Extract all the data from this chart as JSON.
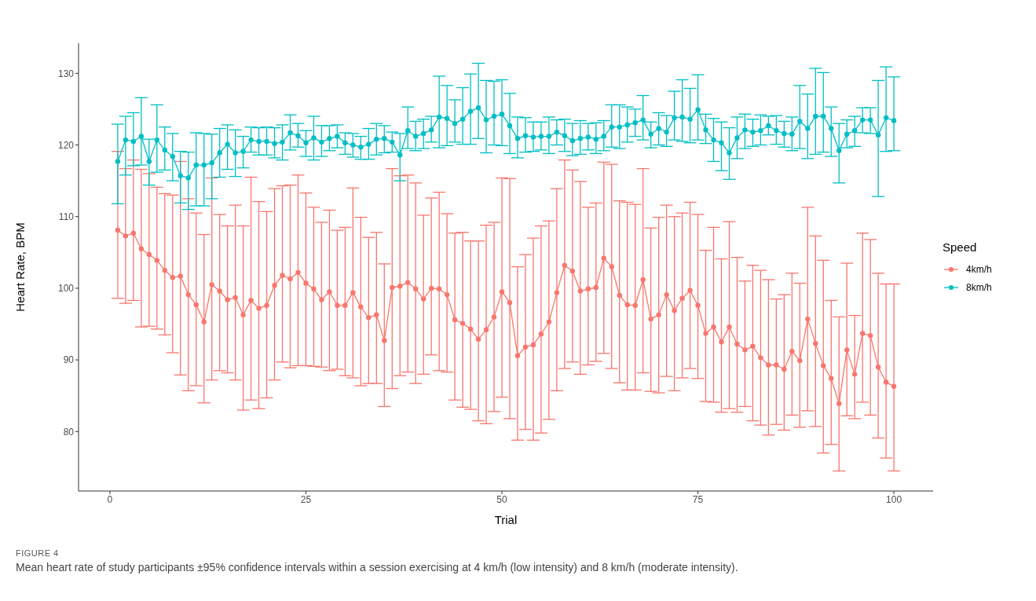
{
  "chart_data": {
    "type": "line",
    "xlabel": "Trial",
    "ylabel": "Heart Rate, BPM",
    "legend_title": "Speed",
    "legend": "right",
    "marker": "circle",
    "line_style": "solid",
    "xlim": [
      -4,
      105
    ],
    "xticks": [
      0,
      25,
      50,
      75,
      100
    ],
    "ylim": [
      71.7,
      134.2
    ],
    "yticks": [
      80,
      90,
      100,
      110,
      120,
      130
    ],
    "x": [
      1,
      2,
      3,
      4,
      5,
      6,
      7,
      8,
      9,
      10,
      11,
      12,
      13,
      14,
      15,
      16,
      17,
      18,
      19,
      20,
      21,
      22,
      23,
      24,
      25,
      26,
      27,
      28,
      29,
      30,
      31,
      32,
      33,
      34,
      35,
      36,
      37,
      38,
      39,
      40,
      41,
      42,
      43,
      44,
      45,
      46,
      47,
      48,
      49,
      50,
      51,
      52,
      53,
      54,
      55,
      56,
      57,
      58,
      59,
      60,
      61,
      62,
      63,
      64,
      65,
      66,
      67,
      68,
      69,
      70,
      71,
      72,
      73,
      74,
      75,
      76,
      77,
      78,
      79,
      80,
      81,
      82,
      83,
      84,
      85,
      86,
      87,
      88,
      89,
      90,
      91,
      92,
      93,
      94,
      95,
      96,
      97,
      98,
      99,
      100
    ],
    "series": [
      {
        "name": "4km/h",
        "color": "#f8766d",
        "values": [
          108.1,
          107.3,
          107.7,
          105.5,
          104.7,
          103.9,
          102.5,
          101.5,
          101.7,
          99.1,
          97.7,
          95.3,
          100.5,
          99.6,
          98.4,
          98.7,
          96.3,
          98.3,
          97.2,
          97.6,
          100.4,
          101.8,
          101.3,
          102.2,
          100.7,
          99.9,
          98.4,
          99.5,
          97.6,
          97.6,
          99.4,
          97.4,
          95.9,
          96.3,
          92.7,
          100.1,
          100.3,
          100.8,
          99.9,
          98.5,
          100.0,
          99.9,
          99.1,
          95.6,
          95.1,
          94.3,
          92.9,
          94.2,
          96.0,
          99.5,
          98.0,
          90.6,
          91.8,
          92.1,
          93.6,
          95.3,
          99.4,
          103.2,
          102.4,
          99.6,
          99.9,
          100.1,
          104.2,
          103.0,
          99.0,
          97.7,
          97.6,
          101.2,
          95.7,
          96.3,
          99.1,
          96.9,
          98.6,
          99.7,
          97.6,
          93.7,
          94.6,
          92.5,
          94.6,
          92.2,
          91.4,
          91.9,
          90.3,
          89.3,
          89.3,
          88.7,
          91.2,
          89.9,
          95.7,
          92.3,
          89.2,
          87.4,
          83.9,
          91.4,
          88.0,
          93.7,
          93.4,
          89.0,
          86.9,
          86.3
        ],
        "errors": [
          [
            98.6,
            119.1
          ],
          [
            97.9,
            116.7
          ],
          [
            98.3,
            117.9
          ],
          [
            94.6,
            116.6
          ],
          [
            94.7,
            116.0
          ],
          [
            94.3,
            114.1
          ],
          [
            93.5,
            113.2
          ],
          [
            91.0,
            113.0
          ],
          [
            87.9,
            117.7
          ],
          [
            85.7,
            112.5
          ],
          [
            86.4,
            110.5
          ],
          [
            84.0,
            107.5
          ],
          [
            87.2,
            115.4
          ],
          [
            88.5,
            110.3
          ],
          [
            88.2,
            108.7
          ],
          [
            87.2,
            111.6
          ],
          [
            83.0,
            108.7
          ],
          [
            84.4,
            115.5
          ],
          [
            83.2,
            112.1
          ],
          [
            84.7,
            110.7
          ],
          [
            87.2,
            113.9
          ],
          [
            89.7,
            114.3
          ],
          [
            88.9,
            114.4
          ],
          [
            89.2,
            115.8
          ],
          [
            89.2,
            113.3
          ],
          [
            89.1,
            111.3
          ],
          [
            89.0,
            109.2
          ],
          [
            88.5,
            110.9
          ],
          [
            88.7,
            108.1
          ],
          [
            87.8,
            108.5
          ],
          [
            87.5,
            114.0
          ],
          [
            86.4,
            109.9
          ],
          [
            86.7,
            107.1
          ],
          [
            86.7,
            107.8
          ],
          [
            83.5,
            103.4
          ],
          [
            86.0,
            116.7
          ],
          [
            87.8,
            115.7
          ],
          [
            88.3,
            115.8
          ],
          [
            86.7,
            114.7
          ],
          [
            88.0,
            110.2
          ],
          [
            90.7,
            112.6
          ],
          [
            88.5,
            113.4
          ],
          [
            88.3,
            110.4
          ],
          [
            84.4,
            107.7
          ],
          [
            83.4,
            107.8
          ],
          [
            83.1,
            106.6
          ],
          [
            81.5,
            106.6
          ],
          [
            81.1,
            108.8
          ],
          [
            82.8,
            109.2
          ],
          [
            84.8,
            115.4
          ],
          [
            81.8,
            115.3
          ],
          [
            78.8,
            103.0
          ],
          [
            80.3,
            104.7
          ],
          [
            78.8,
            107.0
          ],
          [
            79.8,
            108.7
          ],
          [
            81.7,
            109.4
          ],
          [
            85.7,
            113.9
          ],
          [
            88.8,
            117.9
          ],
          [
            89.7,
            116.5
          ],
          [
            88.0,
            114.9
          ],
          [
            89.3,
            111.3
          ],
          [
            89.8,
            111.9
          ],
          [
            90.9,
            117.6
          ],
          [
            88.8,
            117.3
          ],
          [
            86.8,
            112.2
          ],
          [
            85.8,
            112.0
          ],
          [
            85.8,
            111.7
          ],
          [
            88.2,
            116.7
          ],
          [
            85.6,
            108.4
          ],
          [
            85.4,
            109.9
          ],
          [
            87.7,
            111.6
          ],
          [
            85.7,
            110.0
          ],
          [
            87.5,
            110.5
          ],
          [
            88.8,
            112.0
          ],
          [
            87.4,
            110.3
          ],
          [
            84.2,
            105.3
          ],
          [
            84.1,
            108.5
          ],
          [
            82.7,
            104.1
          ],
          [
            83.2,
            109.3
          ],
          [
            82.7,
            104.3
          ],
          [
            83.5,
            101.0
          ],
          [
            81.5,
            103.2
          ],
          [
            80.9,
            102.5
          ],
          [
            79.5,
            101.2
          ],
          [
            81.0,
            98.5
          ],
          [
            80.2,
            99.1
          ],
          [
            82.3,
            102.1
          ],
          [
            80.6,
            100.7
          ],
          [
            82.9,
            111.3
          ],
          [
            80.7,
            107.3
          ],
          [
            77.0,
            103.9
          ],
          [
            78.2,
            98.3
          ],
          [
            74.5,
            96.0
          ],
          [
            82.2,
            103.5
          ],
          [
            81.8,
            96.2
          ],
          [
            84.1,
            107.7
          ],
          [
            82.3,
            106.8
          ],
          [
            79.1,
            102.1
          ],
          [
            76.3,
            100.6
          ],
          [
            74.5,
            100.6
          ]
        ]
      },
      {
        "name": "8km/h",
        "color": "#00bfc4",
        "values": [
          117.7,
          120.7,
          120.5,
          121.2,
          117.7,
          120.7,
          119.3,
          118.4,
          115.7,
          115.4,
          117.2,
          117.2,
          117.5,
          118.9,
          120.1,
          118.9,
          119.1,
          120.7,
          120.5,
          120.5,
          120.2,
          120.4,
          121.7,
          121.3,
          120.3,
          121.0,
          120.4,
          120.9,
          121.2,
          120.3,
          120.0,
          119.7,
          120.1,
          120.8,
          120.9,
          120.4,
          118.6,
          122.0,
          121.2,
          121.6,
          122.1,
          123.9,
          123.7,
          123.0,
          123.6,
          124.7,
          125.2,
          123.5,
          124.0,
          124.3,
          122.7,
          120.9,
          121.3,
          121.1,
          121.2,
          121.2,
          121.8,
          121.3,
          120.6,
          120.9,
          121.1,
          120.8,
          121.2,
          122.5,
          122.5,
          122.8,
          123.1,
          123.5,
          121.5,
          122.3,
          121.8,
          123.8,
          123.9,
          123.6,
          124.9,
          122.1,
          120.7,
          120.3,
          118.9,
          121.0,
          122.1,
          121.8,
          122.0,
          122.7,
          122.0,
          121.6,
          121.5,
          123.3,
          122.3,
          124.0,
          124.0,
          122.3,
          119.2,
          121.5,
          122.0,
          123.5,
          123.5,
          121.4,
          123.8,
          123.4
        ],
        "errors": [
          [
            111.8,
            122.9
          ],
          [
            115.8,
            124.0
          ],
          [
            117.1,
            124.5
          ],
          [
            117.2,
            126.6
          ],
          [
            114.4,
            120.8
          ],
          [
            116.2,
            125.6
          ],
          [
            116.5,
            122.5
          ],
          [
            115.0,
            121.6
          ],
          [
            111.9,
            119.1
          ],
          [
            111.0,
            119.0
          ],
          [
            111.5,
            121.7
          ],
          [
            111.5,
            121.6
          ],
          [
            112.5,
            121.5
          ],
          [
            115.5,
            122.3
          ],
          [
            116.6,
            122.8
          ],
          [
            115.6,
            122.1
          ],
          [
            116.8,
            121.2
          ],
          [
            119.0,
            122.5
          ],
          [
            118.6,
            122.4
          ],
          [
            118.6,
            122.5
          ],
          [
            118.2,
            122.4
          ],
          [
            117.9,
            122.8
          ],
          [
            119.3,
            124.2
          ],
          [
            119.7,
            123.0
          ],
          [
            118.4,
            122.0
          ],
          [
            117.9,
            124.0
          ],
          [
            118.4,
            122.7
          ],
          [
            119.2,
            122.7
          ],
          [
            119.6,
            122.8
          ],
          [
            118.7,
            121.7
          ],
          [
            118.3,
            121.6
          ],
          [
            118.0,
            121.2
          ],
          [
            118.0,
            122.3
          ],
          [
            118.6,
            123.0
          ],
          [
            118.9,
            122.7
          ],
          [
            119.0,
            121.8
          ],
          [
            115.0,
            121.6
          ],
          [
            119.5,
            125.3
          ],
          [
            119.2,
            123.3
          ],
          [
            119.5,
            123.6
          ],
          [
            120.4,
            124.0
          ],
          [
            119.6,
            129.6
          ],
          [
            119.9,
            128.3
          ],
          [
            120.4,
            126.3
          ],
          [
            120.1,
            128.0
          ],
          [
            120.1,
            129.9
          ],
          [
            120.9,
            131.4
          ],
          [
            118.9,
            129.0
          ],
          [
            120.0,
            128.9
          ],
          [
            119.9,
            129.1
          ],
          [
            118.8,
            127.2
          ],
          [
            118.2,
            123.9
          ],
          [
            119.0,
            123.8
          ],
          [
            119.1,
            123.2
          ],
          [
            119.3,
            123.2
          ],
          [
            118.8,
            123.9
          ],
          [
            120.0,
            123.5
          ],
          [
            119.1,
            123.6
          ],
          [
            118.5,
            123.0
          ],
          [
            118.7,
            123.4
          ],
          [
            119.3,
            123.0
          ],
          [
            118.8,
            123.1
          ],
          [
            119.2,
            123.4
          ],
          [
            119.7,
            125.6
          ],
          [
            119.5,
            125.6
          ],
          [
            120.4,
            125.3
          ],
          [
            121.2,
            125.0
          ],
          [
            120.7,
            126.9
          ],
          [
            119.6,
            123.2
          ],
          [
            120.0,
            124.5
          ],
          [
            119.8,
            124.1
          ],
          [
            120.7,
            127.5
          ],
          [
            120.5,
            129.1
          ],
          [
            120.3,
            127.9
          ],
          [
            120.7,
            129.8
          ],
          [
            120.2,
            124.3
          ],
          [
            117.7,
            123.7
          ],
          [
            116.4,
            123.2
          ],
          [
            115.2,
            122.4
          ],
          [
            118.1,
            123.9
          ],
          [
            119.5,
            124.3
          ],
          [
            119.8,
            123.6
          ],
          [
            120.0,
            124.2
          ],
          [
            121.4,
            124.0
          ],
          [
            120.1,
            124.1
          ],
          [
            119.7,
            123.3
          ],
          [
            119.2,
            123.9
          ],
          [
            119.5,
            128.3
          ],
          [
            118.1,
            127.1
          ],
          [
            118.7,
            130.7
          ],
          [
            119.0,
            130.1
          ],
          [
            118.4,
            125.3
          ],
          [
            114.7,
            123.0
          ],
          [
            119.6,
            123.5
          ],
          [
            119.8,
            124.0
          ],
          [
            121.7,
            125.2
          ],
          [
            121.6,
            125.2
          ],
          [
            112.8,
            129.0
          ],
          [
            119.1,
            130.9
          ],
          [
            119.2,
            129.5
          ]
        ]
      }
    ],
    "annotations": [
      "FIGURE 4",
      "Mean heart rate of study participants ±95% confidence intervals within a session exercising at 4 km/h (low intensity) and 8 km/h (moderate intensity)."
    ]
  }
}
